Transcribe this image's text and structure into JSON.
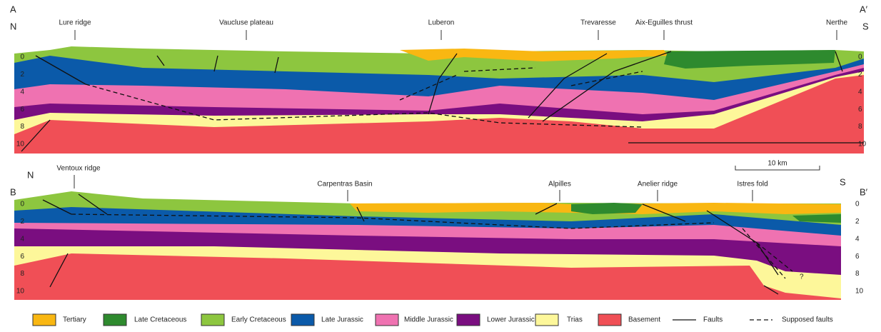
{
  "sections": [
    {
      "start": "A",
      "end": "A′",
      "left_dir": "N",
      "right_dir": "S",
      "places": [
        "Lure ridge",
        "Vaucluse  plateau",
        "Luberon",
        "Trevaresse",
        "Aix-Eguilles thrust",
        "Nerthe"
      ],
      "depth_ticks": [
        0,
        2,
        4,
        6,
        8,
        10
      ]
    },
    {
      "start": "B",
      "end": "B′",
      "left_dir": "N",
      "right_dir": "S",
      "places": [
        "Ventoux ridge",
        "Carpentras Basin",
        "Alpilles",
        "Anelier ridge",
        "Istres fold"
      ],
      "depth_ticks": [
        0,
        2,
        4,
        6,
        8,
        10
      ]
    }
  ],
  "scale_bar": "10 km",
  "question_mark": "?",
  "legend": [
    "Tertiary",
    "Late Cretaceous",
    "Early Cretaceous",
    "Late Jurassic",
    "Middle Jurassic",
    "Lower Jurassic",
    "Trias",
    "Basement",
    "Faults",
    "Supposed faults"
  ]
}
